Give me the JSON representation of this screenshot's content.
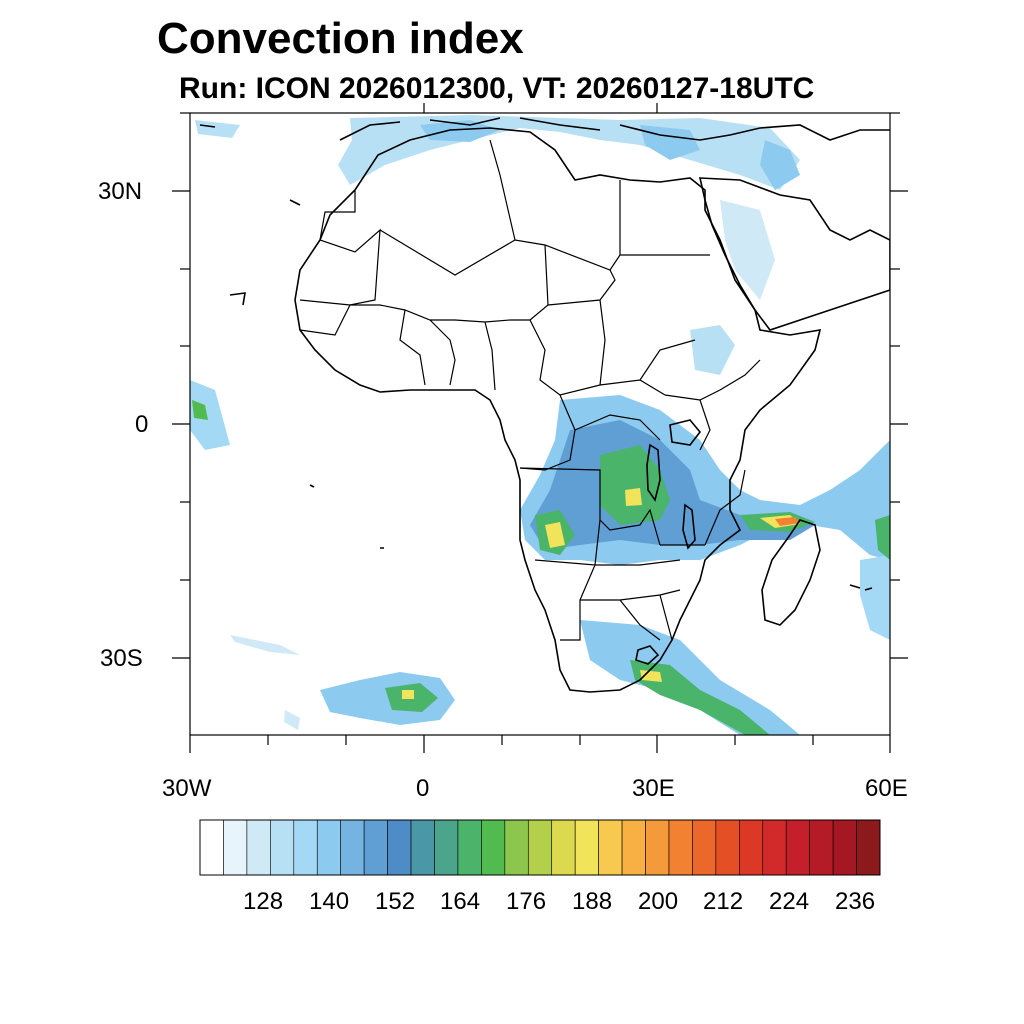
{
  "map": {
    "title": "Convection index",
    "subtitle": "Run: ICON 2026012300,  VT: 20260127-18UTC",
    "lon_range": [
      -30,
      60
    ],
    "lat_range": [
      -40,
      40
    ],
    "lat_labels": [
      "30N",
      "0",
      "30S"
    ],
    "lon_labels": [
      "30W",
      "0",
      "30E",
      "60E"
    ],
    "region": "Africa"
  },
  "colorbar": {
    "tick_labels": [
      "128",
      "140",
      "152",
      "164",
      "176",
      "188",
      "200",
      "212",
      "224",
      "236"
    ],
    "colors": [
      "#ffffff",
      "#e8f4fc",
      "#cfe9f7",
      "#b8e0f5",
      "#a4d9f5",
      "#8dcaf0",
      "#75b4e2",
      "#609fd4",
      "#4d8cc6",
      "#4a97a8",
      "#4aa58a",
      "#4bb46b",
      "#52bb4f",
      "#8cc64c",
      "#b3d04b",
      "#dcd94f",
      "#f2e45a",
      "#f7c94e",
      "#f8b043",
      "#f59a3a",
      "#f28232",
      "#ec672a",
      "#e44f26",
      "#dc3826",
      "#d22a2b",
      "#c51f2b",
      "#b51a27",
      "#a51723",
      "#8c1a1d"
    ]
  }
}
